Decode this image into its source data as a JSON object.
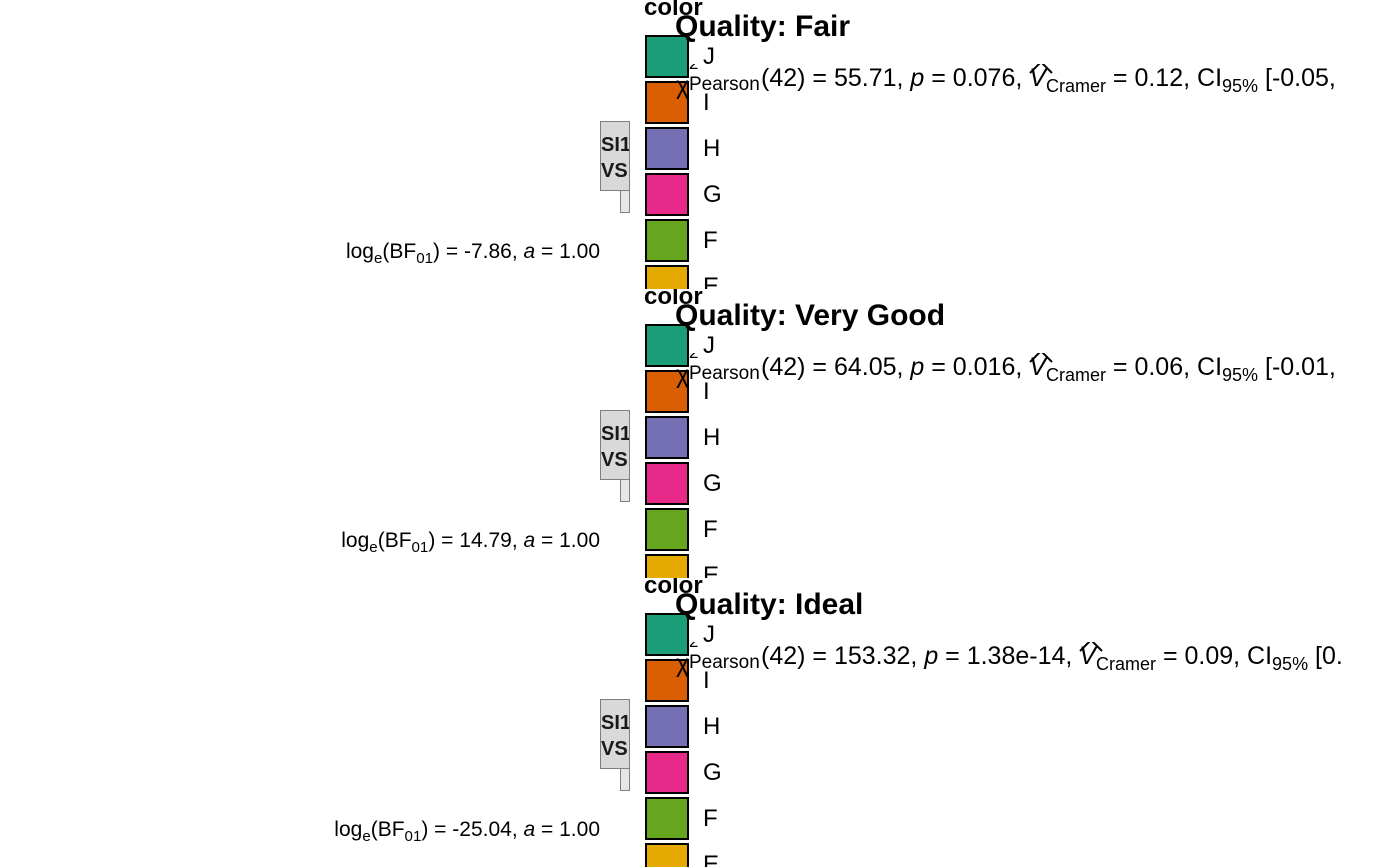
{
  "legend": {
    "title": "color",
    "keys": [
      {
        "label": "J",
        "color": "#1B9E77"
      },
      {
        "label": "I",
        "color": "#D95F02"
      },
      {
        "label": "H",
        "color": "#7570B3"
      },
      {
        "label": "G",
        "color": "#E7298A"
      },
      {
        "label": "F",
        "color": "#66A61E"
      },
      {
        "label": "E",
        "color": "#E6AB02"
      }
    ]
  },
  "strip": {
    "line1": "SI1",
    "line2": "VS"
  },
  "panels": [
    {
      "title": "Quality: Fair",
      "stat": {
        "chi": "χ",
        "sup": "2",
        "sub": "Pearson",
        "df_value": "(42) = 55.71, ",
        "p_label": "p",
        "p_value": " = 0.076, ",
        "v_label": "V",
        "v_sub": "Cramer",
        "v_value": " = 0.12, CI",
        "ci_sub": "95%",
        "ci_value": " [-0.05,"
      },
      "bf": {
        "prefix": "log",
        "e_sub": "e",
        "mid": "(BF",
        "bf_sub": "01",
        "value": ") = -7.86, ",
        "a_label": "a",
        "a_value": " = 1.00"
      }
    },
    {
      "title": "Quality: Very Good",
      "stat": {
        "chi": "χ",
        "sup": "2",
        "sub": "Pearson",
        "df_value": "(42) = 64.05, ",
        "p_label": "p",
        "p_value": " = 0.016, ",
        "v_label": "V",
        "v_sub": "Cramer",
        "v_value": " = 0.06, CI",
        "ci_sub": "95%",
        "ci_value": " [-0.01,"
      },
      "bf": {
        "prefix": "log",
        "e_sub": "e",
        "mid": "(BF",
        "bf_sub": "01",
        "value": ") = 14.79, ",
        "a_label": "a",
        "a_value": " = 1.00"
      }
    },
    {
      "title": "Quality: Ideal",
      "stat": {
        "chi": "χ",
        "sup": "2",
        "sub": "Pearson",
        "df_value": "(42) = 153.32, ",
        "p_label": "p",
        "p_value": " = 1.38e-14, ",
        "v_label": "V",
        "v_sub": "Cramer",
        "v_value": " = 0.09, CI",
        "ci_sub": "95%",
        "ci_value": " [0."
      },
      "bf": {
        "prefix": "log",
        "e_sub": "e",
        "mid": "(BF",
        "bf_sub": "01",
        "value": ") = -25.04, ",
        "a_label": "a",
        "a_value": " = 1.00"
      }
    }
  ],
  "chart_data": [
    {
      "type": "bar",
      "title": "Quality: Fair",
      "legend_title": "color",
      "categories": [
        "J",
        "I",
        "H",
        "G",
        "F",
        "E"
      ],
      "facet_label": [
        "SI1",
        "VS"
      ],
      "statistics": {
        "chi2_df": 42,
        "chi2": 55.71,
        "p": 0.076,
        "cramers_v": 0.12,
        "ci95_low": -0.05,
        "log_bf01": -7.86,
        "a": 1.0
      }
    },
    {
      "type": "bar",
      "title": "Quality: Very Good",
      "legend_title": "color",
      "categories": [
        "J",
        "I",
        "H",
        "G",
        "F",
        "E"
      ],
      "facet_label": [
        "SI1",
        "VS"
      ],
      "statistics": {
        "chi2_df": 42,
        "chi2": 64.05,
        "p": 0.016,
        "cramers_v": 0.06,
        "ci95_low": -0.01,
        "log_bf01": 14.79,
        "a": 1.0
      }
    },
    {
      "type": "bar",
      "title": "Quality: Ideal",
      "legend_title": "color",
      "categories": [
        "J",
        "I",
        "H",
        "G",
        "F",
        "E"
      ],
      "facet_label": [
        "SI1",
        "VS"
      ],
      "statistics": {
        "chi2_df": 42,
        "chi2": 153.32,
        "p": 1.38e-14,
        "cramers_v": 0.09,
        "log_bf01": -25.04,
        "a": 1.0
      }
    }
  ]
}
